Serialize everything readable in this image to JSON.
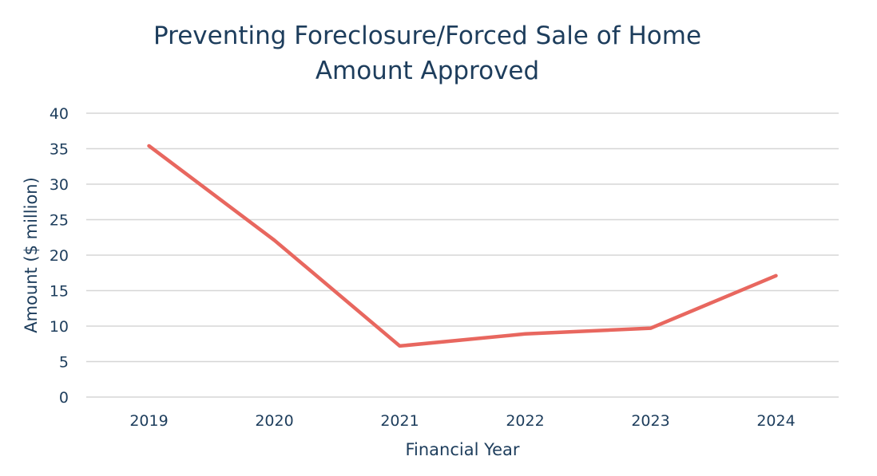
{
  "chart_data": {
    "type": "line",
    "title": [
      "Preventing Foreclosure/Forced Sale of Home",
      "Amount Approved"
    ],
    "xlabel": "Financial Year",
    "ylabel": "Amount ($ million)",
    "categories": [
      "2019",
      "2020",
      "2021",
      "2022",
      "2023",
      "2024"
    ],
    "series": [
      {
        "values": [
          35.4,
          22.1,
          7.2,
          8.9,
          9.7,
          17.1
        ]
      }
    ],
    "ylim": [
      0,
      40
    ],
    "yticks": [
      0,
      5,
      10,
      15,
      20,
      25,
      30,
      35,
      40
    ],
    "grid": true,
    "legend": "none",
    "colors": {
      "line": "#e8675f",
      "grid": "#d6d6d6",
      "text": "#1d3d5c"
    }
  }
}
